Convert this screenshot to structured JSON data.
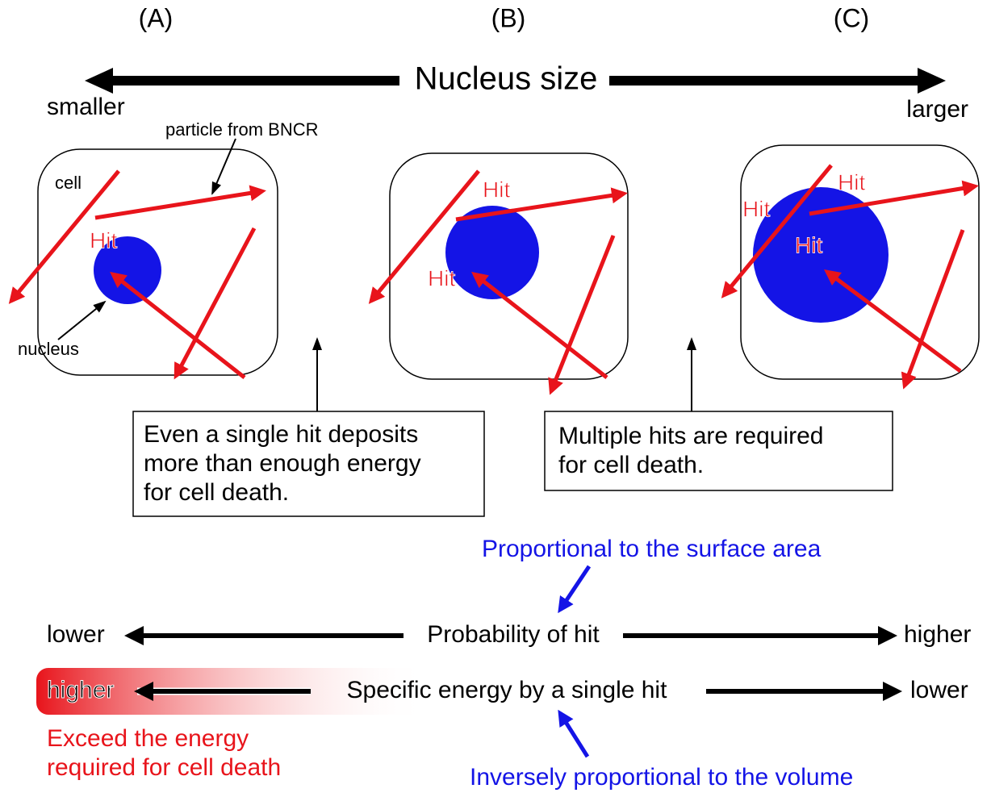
{
  "panels": [
    {
      "label": "(A)",
      "hits": [
        "Hit"
      ]
    },
    {
      "label": "(B)",
      "hits": [
        "Hit",
        "Hit"
      ]
    },
    {
      "label": "(C)",
      "hits": [
        "Hit",
        "Hit",
        "Hit"
      ]
    }
  ],
  "nucleus_axis": {
    "title": "Nucleus size",
    "left": "smaller",
    "right": "larger"
  },
  "labels": {
    "cell": "cell",
    "nucleus": "nucleus",
    "particle": "particle from BNCR"
  },
  "notes": [
    [
      "Even a single hit deposits",
      "more than enough energy",
      "for cell death."
    ],
    [
      "Multiple hits are required",
      "for cell death."
    ]
  ],
  "probability": {
    "title": "Probability of hit",
    "left": "lower",
    "right": "higher",
    "note": "Proportional to the surface area"
  },
  "specific_energy": {
    "title": "Specific energy by a single hit",
    "left": "higher",
    "right": "lower",
    "note": "Inversely proportional to the volume",
    "warning": [
      "Exceed the energy",
      "required for cell death"
    ]
  }
}
